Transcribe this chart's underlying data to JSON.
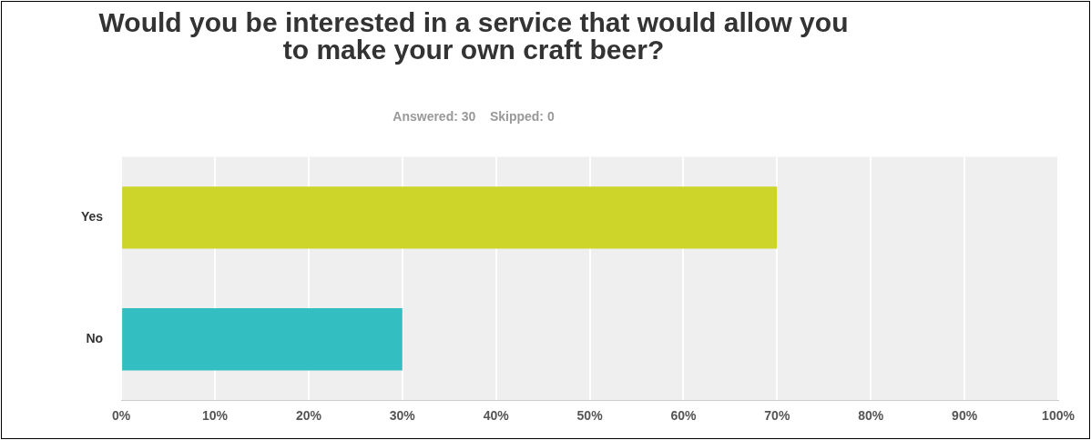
{
  "chart_data": {
    "type": "bar",
    "orientation": "horizontal",
    "title": "Would you be interested in a service that would allow you to make your own craft beer?",
    "subtitle": "Answered: 30    Skipped: 0",
    "categories": [
      "Yes",
      "No"
    ],
    "values": [
      70,
      30
    ],
    "colors": [
      "#cdd42a",
      "#33bfc1"
    ],
    "xlim": [
      0,
      100
    ],
    "xticks": [
      {
        "value": 0,
        "label": "0%"
      },
      {
        "value": 10,
        "label": "10%"
      },
      {
        "value": 20,
        "label": "20%"
      },
      {
        "value": 30,
        "label": "30%"
      },
      {
        "value": 40,
        "label": "40%"
      },
      {
        "value": 50,
        "label": "50%"
      },
      {
        "value": 60,
        "label": "60%"
      },
      {
        "value": 70,
        "label": "70%"
      },
      {
        "value": 80,
        "label": "80%"
      },
      {
        "value": 90,
        "label": "90%"
      },
      {
        "value": 100,
        "label": "100%"
      }
    ],
    "grid": "x",
    "legend": false
  }
}
